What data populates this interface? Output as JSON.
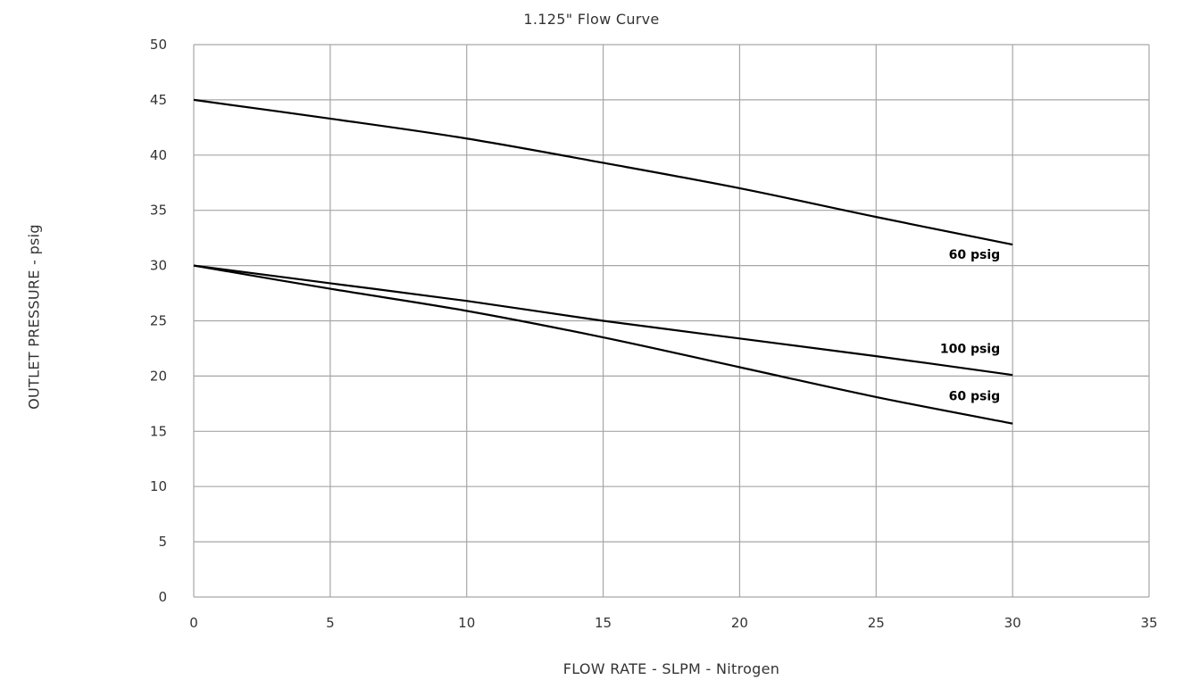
{
  "chart_data": {
    "type": "line",
    "title": "1.125\" Flow Curve",
    "xlabel": "FLOW RATE - SLPM - Nitrogen",
    "ylabel": "OUTLET PRESSURE - psig",
    "xlim": [
      0,
      35
    ],
    "ylim": [
      0,
      50
    ],
    "xticks": [
      "0",
      "5",
      "10",
      "15",
      "20",
      "25",
      "30",
      "35"
    ],
    "yticks": [
      "0",
      "5",
      "10",
      "15",
      "20",
      "25",
      "30",
      "35",
      "40",
      "45",
      "50"
    ],
    "grid": true,
    "series": [
      {
        "name": "60 psig",
        "x": [
          0,
          5,
          10,
          15,
          20,
          25,
          30
        ],
        "values": [
          45,
          43.3,
          41.5,
          39.3,
          37,
          34.4,
          31.9
        ],
        "label_y": 31.0
      },
      {
        "name": "100 psig",
        "x": [
          0,
          5,
          10,
          15,
          20,
          25,
          30
        ],
        "values": [
          30,
          28.4,
          26.8,
          25,
          23.4,
          21.8,
          20.1
        ],
        "label_y": 22.5
      },
      {
        "name": "60 psig",
        "x": [
          0,
          5,
          10,
          15,
          20,
          25,
          30
        ],
        "values": [
          30,
          27.9,
          25.9,
          23.5,
          20.8,
          18.1,
          15.7
        ],
        "label_y": 18.2
      }
    ],
    "colors": {
      "line": "#000000",
      "grid": "#a6a6a6",
      "text": "#333333"
    }
  }
}
